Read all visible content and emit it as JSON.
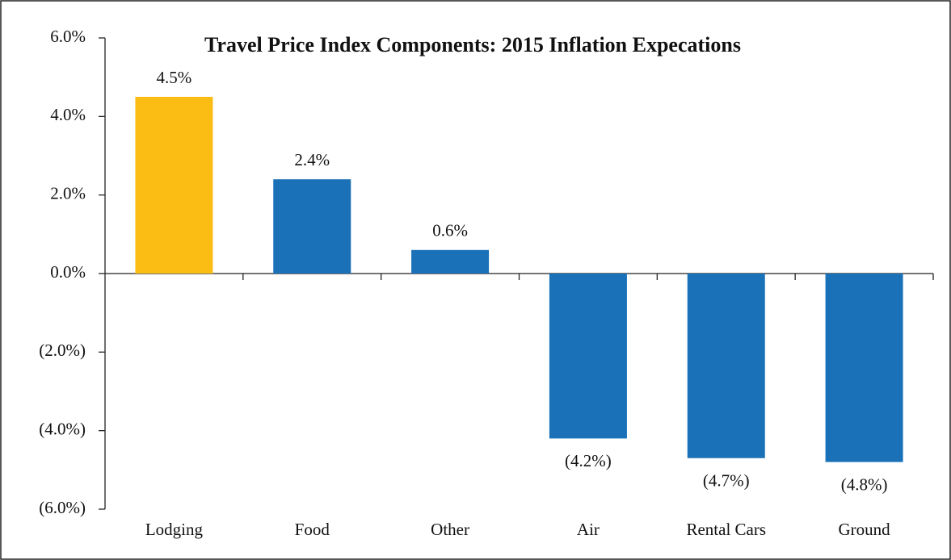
{
  "chart_data": {
    "type": "bar",
    "title": "Travel Price Index Components: 2015 Inflation Expecations",
    "categories": [
      "Lodging",
      "Food",
      "Other",
      "Air",
      "Rental Cars",
      "Ground"
    ],
    "values": [
      4.5,
      2.4,
      0.6,
      -4.2,
      -4.7,
      -4.8
    ],
    "value_labels": [
      "4.5%",
      "2.4%",
      "0.6%",
      "(4.2%)",
      "(4.7%)",
      "(4.8%)"
    ],
    "colors": [
      "#fbbd14",
      "#1a71b8",
      "#1a71b8",
      "#1a71b8",
      "#1a71b8",
      "#1a71b8"
    ],
    "ylim": [
      -6,
      6
    ],
    "yticks": [
      {
        "value": -6,
        "label": "(6.0%)"
      },
      {
        "value": -4,
        "label": "(4.0%)"
      },
      {
        "value": -2,
        "label": "(2.0%)"
      },
      {
        "value": 0,
        "label": "0.0%"
      },
      {
        "value": 2,
        "label": "2.0%"
      },
      {
        "value": 4,
        "label": "4.0%"
      },
      {
        "value": 6,
        "label": "6.0%"
      }
    ],
    "grid": false
  }
}
